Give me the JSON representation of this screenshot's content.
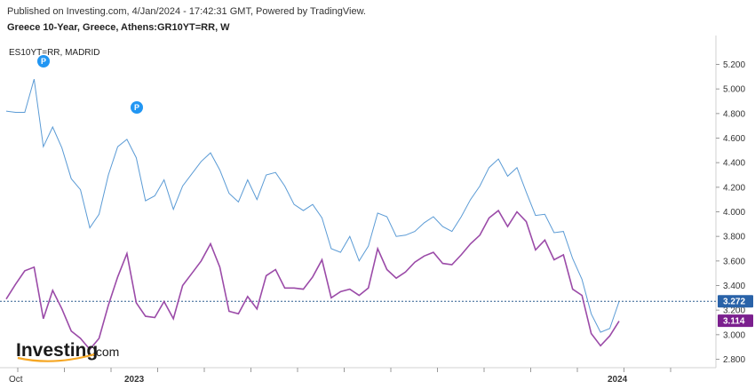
{
  "header": {
    "published": "Published on Investing.com, 4/Jan/2024 - 17:42:31 GMT, Powered by TradingView.",
    "symbol_title": "Greece 10-Year, Greece, Athens:GR10YT=RR, W"
  },
  "legend": {
    "secondary_symbol": "ES10YT=RR, MADRID"
  },
  "markers": {
    "label": "P"
  },
  "logo": {
    "main": "Investing",
    "domain": ".com"
  },
  "colors": {
    "primary_line": "#5b9bd5",
    "secondary_line": "#9b4ba8",
    "primary_badge": "#2962a8",
    "secondary_badge": "#7b1f8e",
    "marker": "#2196f3",
    "price_line": "#2f5f8f"
  },
  "chart_data": {
    "type": "line",
    "ylim": [
      2.7,
      5.3
    ],
    "y_ticks": [
      "2.800",
      "3.000",
      "3.200",
      "3.400",
      "3.600",
      "3.800",
      "4.000",
      "4.200",
      "4.400",
      "4.600",
      "4.800",
      "5.000",
      "5.200"
    ],
    "x_labels": [
      "Oct",
      "2023",
      "2024"
    ],
    "series": [
      {
        "name": "Greece 10-Year",
        "last_value_label": "3.272",
        "values": [
          4.82,
          4.81,
          4.81,
          5.08,
          4.53,
          4.69,
          4.52,
          4.27,
          4.18,
          3.87,
          3.98,
          4.3,
          4.53,
          4.59,
          4.44,
          4.09,
          4.13,
          4.26,
          4.02,
          4.21,
          4.31,
          4.41,
          4.48,
          4.34,
          4.15,
          4.08,
          4.26,
          4.1,
          4.3,
          4.32,
          4.21,
          4.06,
          4.01,
          4.06,
          3.95,
          3.7,
          3.67,
          3.8,
          3.6,
          3.72,
          3.99,
          3.96,
          3.8,
          3.81,
          3.84,
          3.91,
          3.96,
          3.88,
          3.84,
          3.96,
          4.1,
          4.21,
          4.36,
          4.43,
          4.29,
          4.36,
          4.16,
          3.97,
          3.98,
          3.83,
          3.84,
          3.62,
          3.45,
          3.17,
          3.02,
          3.05,
          3.27
        ]
      },
      {
        "name": "ES10YT=RR, MADRID",
        "last_value_label": "3.114",
        "values": [
          3.29,
          3.41,
          3.52,
          3.55,
          3.13,
          3.36,
          3.21,
          3.03,
          2.97,
          2.88,
          2.97,
          3.24,
          3.47,
          3.66,
          3.26,
          3.15,
          3.14,
          3.27,
          3.13,
          3.4,
          3.5,
          3.6,
          3.74,
          3.55,
          3.19,
          3.17,
          3.31,
          3.21,
          3.48,
          3.53,
          3.38,
          3.38,
          3.37,
          3.47,
          3.61,
          3.3,
          3.35,
          3.37,
          3.32,
          3.38,
          3.7,
          3.53,
          3.46,
          3.51,
          3.59,
          3.64,
          3.67,
          3.58,
          3.57,
          3.65,
          3.74,
          3.81,
          3.95,
          4.01,
          3.88,
          4.0,
          3.92,
          3.69,
          3.77,
          3.61,
          3.65,
          3.37,
          3.32,
          3.01,
          2.91,
          2.99,
          3.11
        ]
      }
    ]
  }
}
